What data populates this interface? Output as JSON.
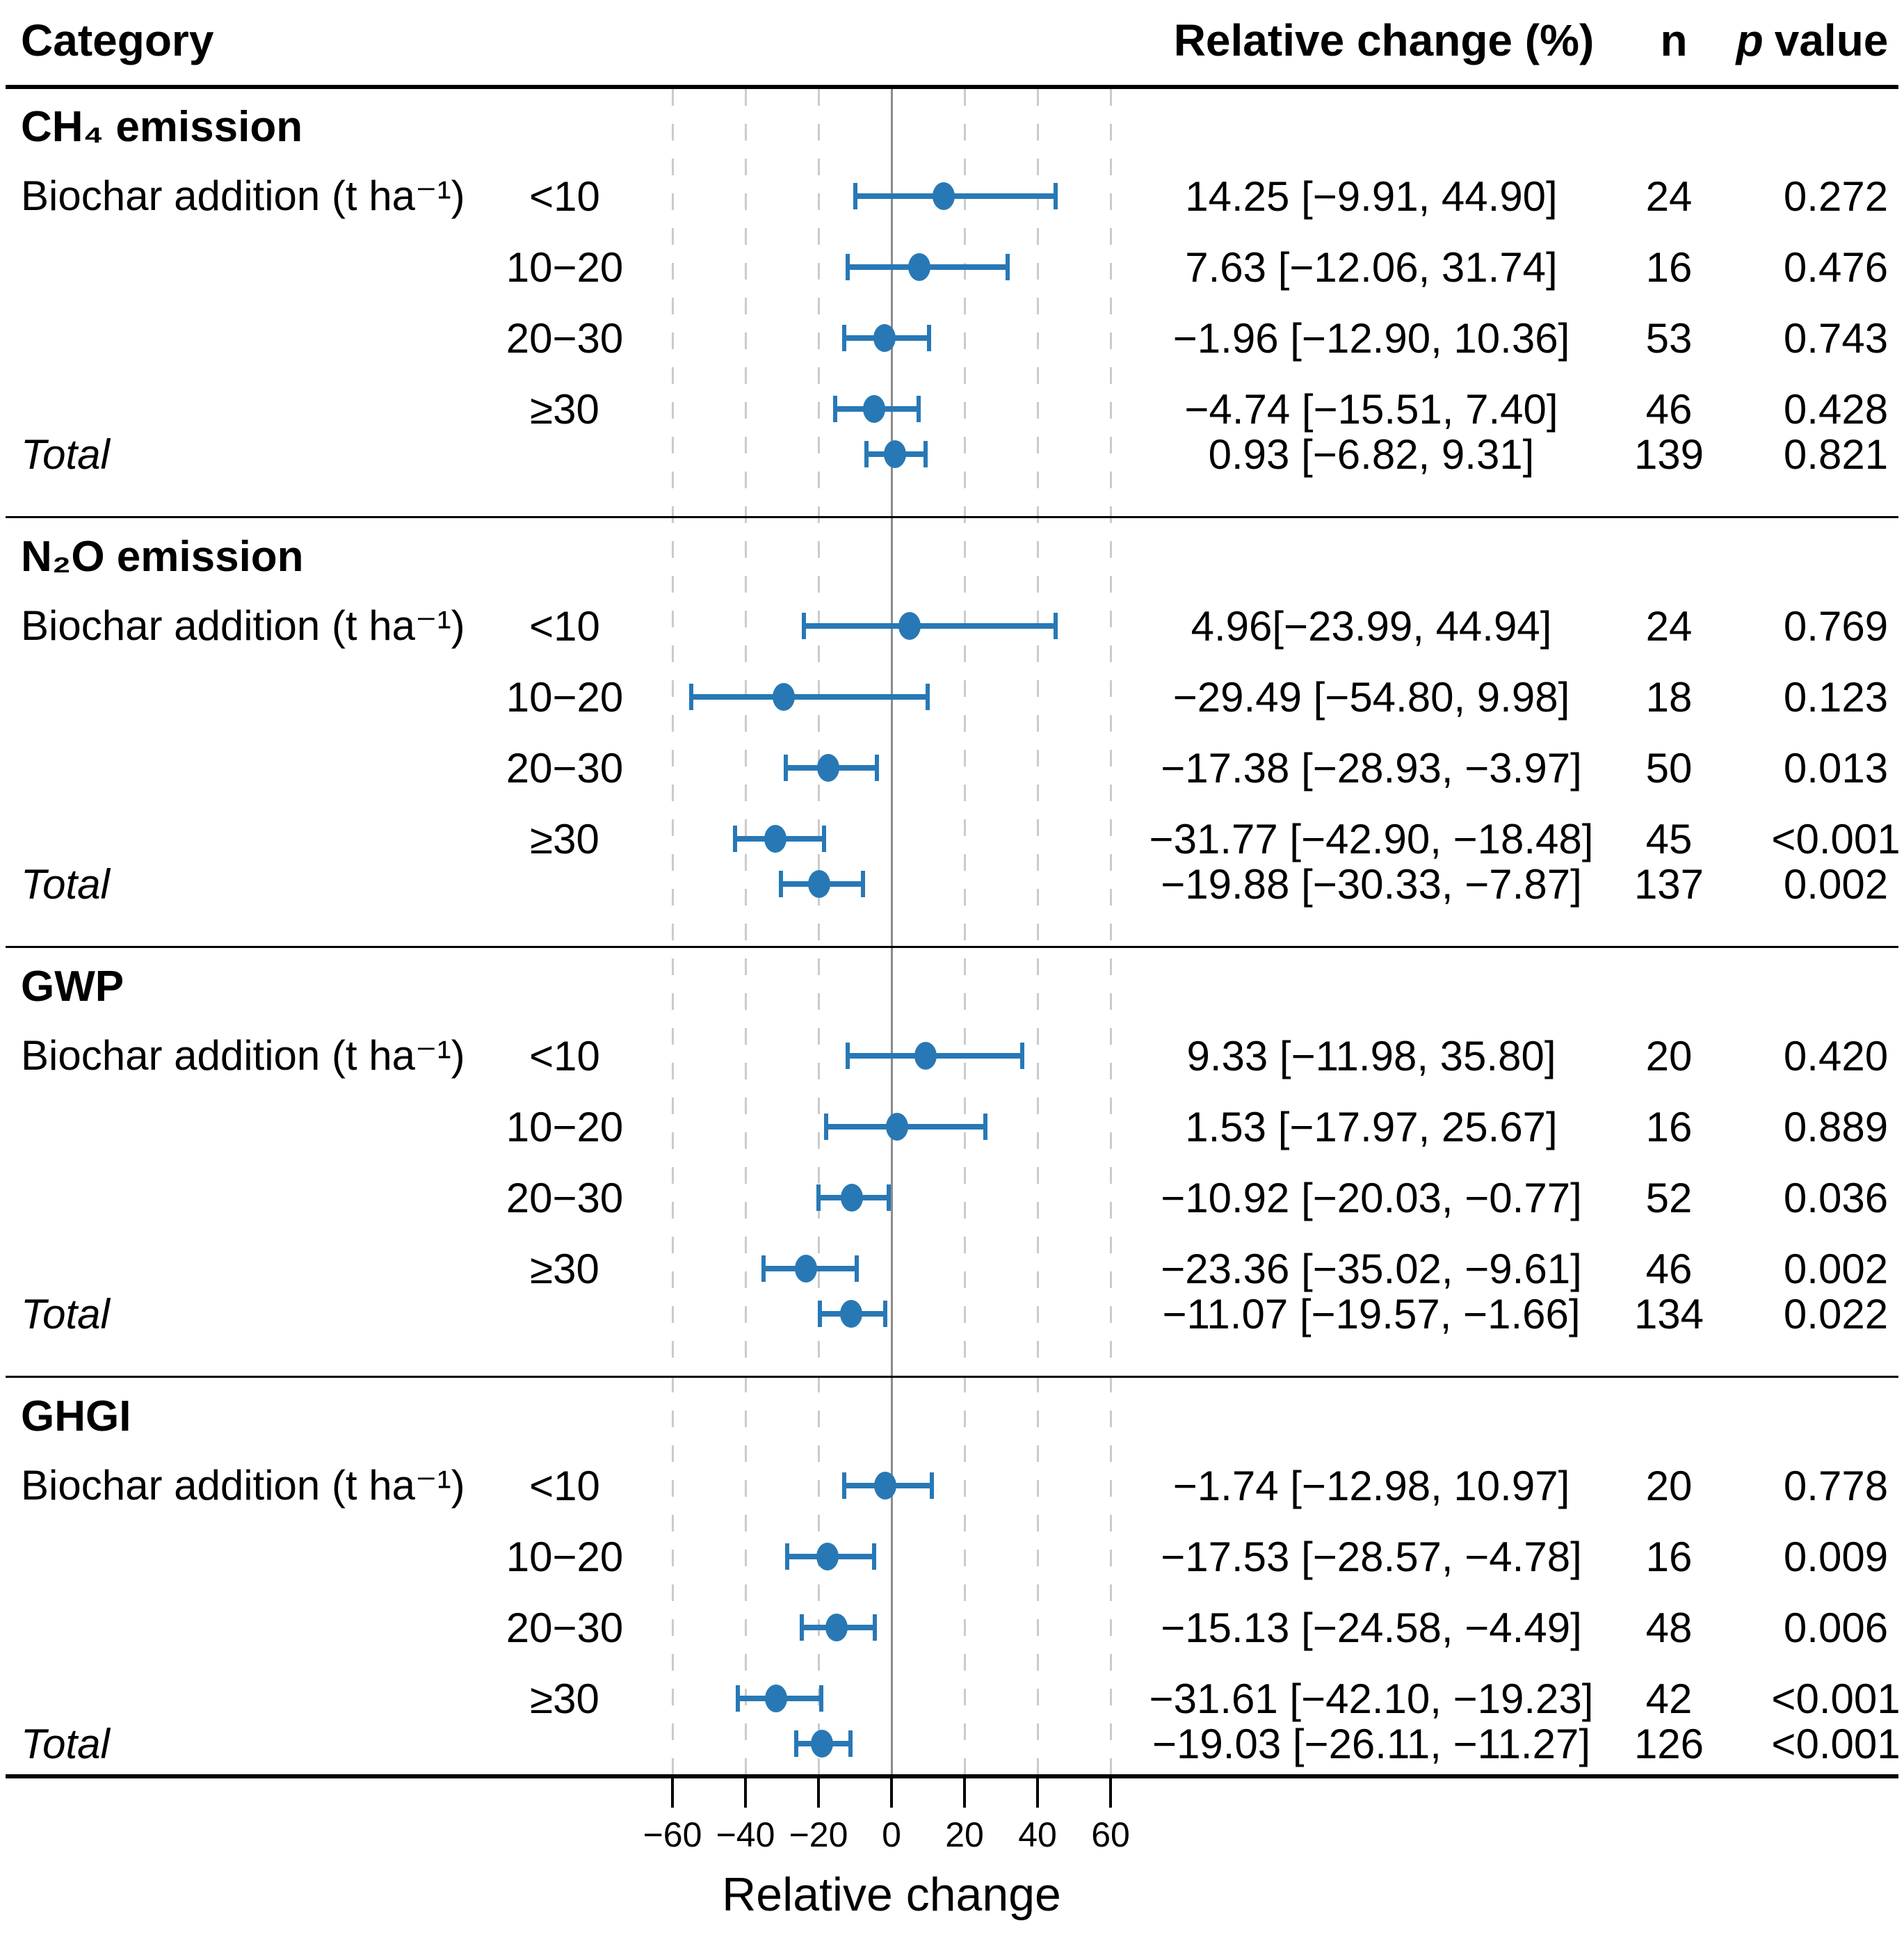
{
  "header": {
    "category": "Category",
    "effect": "Relative change (%)",
    "n": "n",
    "p_italic": "p",
    "p_rest": "value"
  },
  "colors": {
    "marker": "#2878b5",
    "gridline": "#cbcbcb",
    "zero_line": "#8c8c8c",
    "rule": "#000000",
    "text": "#000000"
  },
  "chart_data": {
    "type": "forest",
    "xlabel_column_note": "effect estimates shown as mean [95% CI]",
    "axis": {
      "xlabel": "Relative change",
      "xlim": [
        -70,
        75
      ],
      "grid": "dashed vertical at ticks, solid at 0",
      "ticks": [
        {
          "v": -60,
          "label": "−60"
        },
        {
          "v": -40,
          "label": "−40"
        },
        {
          "v": -20,
          "label": "−20"
        },
        {
          "v": 0,
          "label": "0"
        },
        {
          "v": 20,
          "label": "20"
        },
        {
          "v": 40,
          "label": "40"
        },
        {
          "v": 60,
          "label": "60"
        }
      ]
    },
    "sections": [
      {
        "heading": "CH₄ emission",
        "group_label": "Biochar addition (t ha⁻¹)",
        "rows": [
          {
            "label": "<10",
            "mean": 14.25,
            "lo": -9.91,
            "hi": 44.9,
            "text": "14.25 [−9.91, 44.90]",
            "n": 24,
            "p": "0.272"
          },
          {
            "label": "10−20",
            "mean": 7.63,
            "lo": -12.06,
            "hi": 31.74,
            "text": "7.63 [−12.06, 31.74]",
            "n": 16,
            "p": "0.476"
          },
          {
            "label": "20−30",
            "mean": -1.96,
            "lo": -12.9,
            "hi": 10.36,
            "text": "−1.96 [−12.90, 10.36]",
            "n": 53,
            "p": "0.743"
          },
          {
            "label": "≥30",
            "mean": -4.74,
            "lo": -15.51,
            "hi": 7.4,
            "text": "−4.74 [−15.51, 7.40]",
            "n": 46,
            "p": "0.428"
          },
          {
            "label": "Total",
            "total": true,
            "mean": 0.93,
            "lo": -6.82,
            "hi": 9.31,
            "text": "0.93 [−6.82, 9.31]",
            "n": 139,
            "p": "0.821"
          }
        ]
      },
      {
        "heading": "N₂O emission",
        "group_label": "Biochar addition (t ha⁻¹)",
        "rows": [
          {
            "label": "<10",
            "mean": 4.96,
            "lo": -23.99,
            "hi": 44.94,
            "text": "4.96[−23.99, 44.94]",
            "n": 24,
            "p": "0.769"
          },
          {
            "label": "10−20",
            "mean": -29.49,
            "lo": -54.8,
            "hi": 9.98,
            "text": "−29.49 [−54.80, 9.98]",
            "n": 18,
            "p": "0.123"
          },
          {
            "label": "20−30",
            "mean": -17.38,
            "lo": -28.93,
            "hi": -3.97,
            "text": "−17.38 [−28.93, −3.97]",
            "n": 50,
            "p": "0.013"
          },
          {
            "label": "≥30",
            "mean": -31.77,
            "lo": -42.9,
            "hi": -18.48,
            "text": "−31.77 [−42.90, −18.48]",
            "n": 45,
            "p": "<0.001"
          },
          {
            "label": "Total",
            "total": true,
            "mean": -19.88,
            "lo": -30.33,
            "hi": -7.87,
            "text": "−19.88 [−30.33, −7.87]",
            "n": 137,
            "p": "0.002"
          }
        ]
      },
      {
        "heading": "GWP",
        "group_label": "Biochar addition (t ha⁻¹)",
        "rows": [
          {
            "label": "<10",
            "mean": 9.33,
            "lo": -11.98,
            "hi": 35.8,
            "text": "9.33 [−11.98, 35.80]",
            "n": 20,
            "p": "0.420"
          },
          {
            "label": "10−20",
            "mean": 1.53,
            "lo": -17.97,
            "hi": 25.67,
            "text": "1.53 [−17.97, 25.67]",
            "n": 16,
            "p": "0.889"
          },
          {
            "label": "20−30",
            "mean": -10.92,
            "lo": -20.03,
            "hi": -0.77,
            "text": "−10.92 [−20.03, −0.77]",
            "n": 52,
            "p": "0.036"
          },
          {
            "label": "≥30",
            "mean": -23.36,
            "lo": -35.02,
            "hi": -9.61,
            "text": "−23.36 [−35.02, −9.61]",
            "n": 46,
            "p": "0.002"
          },
          {
            "label": "Total",
            "total": true,
            "mean": -11.07,
            "lo": -19.57,
            "hi": -1.66,
            "text": "−11.07 [−19.57, −1.66]",
            "n": 134,
            "p": "0.022"
          }
        ]
      },
      {
        "heading": "GHGI",
        "group_label": "Biochar addition (t ha⁻¹)",
        "rows": [
          {
            "label": "<10",
            "mean": -1.74,
            "lo": -12.98,
            "hi": 10.97,
            "text": "−1.74 [−12.98, 10.97]",
            "n": 20,
            "p": "0.778"
          },
          {
            "label": "10−20",
            "mean": -17.53,
            "lo": -28.57,
            "hi": -4.78,
            "text": "−17.53 [−28.57, −4.78]",
            "n": 16,
            "p": "0.009"
          },
          {
            "label": "20−30",
            "mean": -15.13,
            "lo": -24.58,
            "hi": -4.49,
            "text": "−15.13 [−24.58, −4.49]",
            "n": 48,
            "p": "0.006"
          },
          {
            "label": "≥30",
            "mean": -31.61,
            "lo": -42.1,
            "hi": -19.23,
            "text": "−31.61 [−42.10, −19.23]",
            "n": 42,
            "p": "<0.001"
          },
          {
            "label": "Total",
            "total": true,
            "mean": -19.03,
            "lo": -26.11,
            "hi": -11.27,
            "text": "−19.03 [−26.11, −11.27]",
            "n": 126,
            "p": "<0.001"
          }
        ]
      }
    ]
  }
}
